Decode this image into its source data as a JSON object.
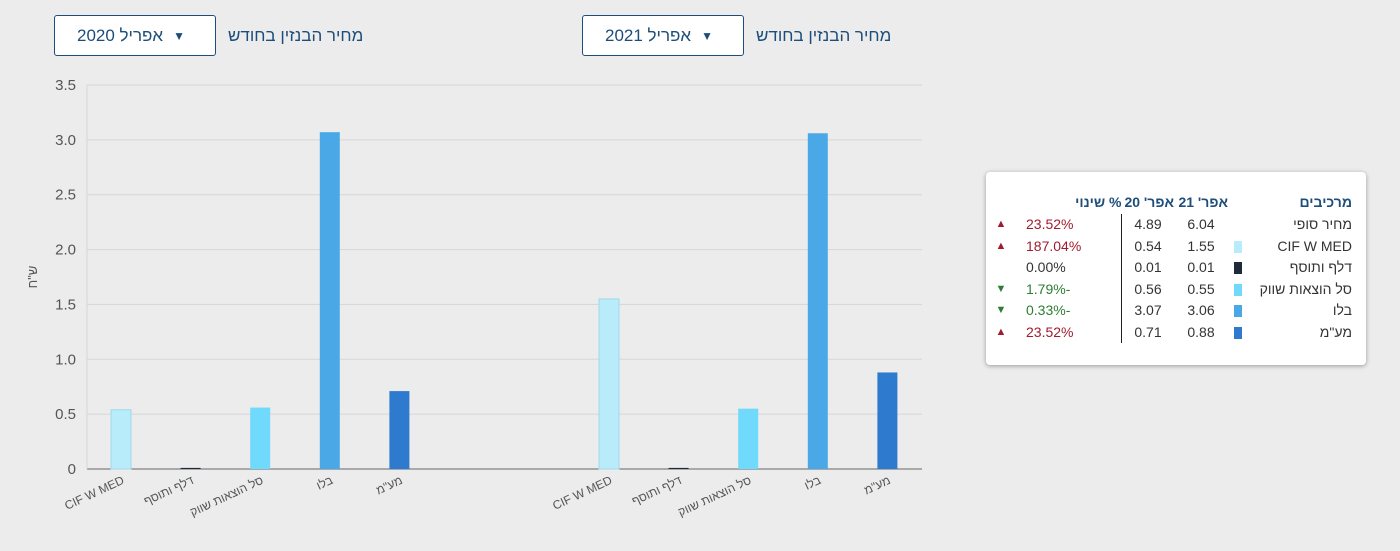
{
  "selectors": [
    {
      "label": "מחיר הבנזין בחודש",
      "value": "אפריל 2021"
    },
    {
      "label": "מחיר הבנזין בחודש",
      "value": "אפריל 2020"
    }
  ],
  "chart_data": {
    "type": "bar",
    "ylabel": "ש\"ח",
    "ylim": [
      0,
      3.5
    ],
    "yticks": [
      "0",
      "0.5",
      "1.0",
      "1.5",
      "2.0",
      "2.5",
      "3.0",
      "3.5"
    ],
    "groups": [
      {
        "name": "אפריל 2020",
        "categories": [
          "CIF W MED",
          "דלף ותוסף",
          "סל הוצאות שווק",
          "בלו",
          "מע\"מ"
        ],
        "values": [
          0.54,
          0.01,
          0.56,
          3.07,
          0.71
        ],
        "colors": [
          "#b8ecfb",
          "#1e2a3a",
          "#70dafc",
          "#4aa8e6",
          "#2d7acf"
        ]
      },
      {
        "name": "אפריל 2021",
        "categories": [
          "CIF W MED",
          "דלף ותוסף",
          "סל הוצאות שווק",
          "בלו",
          "מע\"מ"
        ],
        "values": [
          1.55,
          0.01,
          0.55,
          3.06,
          0.88
        ],
        "colors": [
          "#b8ecfb",
          "#1e2a3a",
          "#70dafc",
          "#4aa8e6",
          "#2d7acf"
        ]
      }
    ]
  },
  "legend": {
    "headers": [
      "מרכיבים",
      "אפר' 21",
      "אפר' 20",
      "% שינוי"
    ],
    "rows": [
      {
        "name": "מחיר סופי",
        "color": "",
        "v21": "6.04",
        "v20": "4.89",
        "pct": "23.52%",
        "dir": "up"
      },
      {
        "name": "CIF W MED",
        "color": "#b8ecfb",
        "v21": "1.55",
        "v20": "0.54",
        "pct": "187.04%",
        "dir": "up"
      },
      {
        "name": "דלף ותוסף",
        "color": "#1e2a3a",
        "v21": "0.01",
        "v20": "0.01",
        "pct": "0.00%",
        "dir": "none"
      },
      {
        "name": "סל הוצאות שווק",
        "color": "#70dafc",
        "v21": "0.55",
        "v20": "0.56",
        "pct": "-1.79%",
        "dir": "down"
      },
      {
        "name": "בלו",
        "color": "#4aa8e6",
        "v21": "3.06",
        "v20": "3.07",
        "pct": "-0.33%",
        "dir": "down"
      },
      {
        "name": "מע\"מ",
        "color": "#2d7acf",
        "v21": "0.88",
        "v20": "0.71",
        "pct": "23.52%",
        "dir": "up"
      }
    ]
  }
}
